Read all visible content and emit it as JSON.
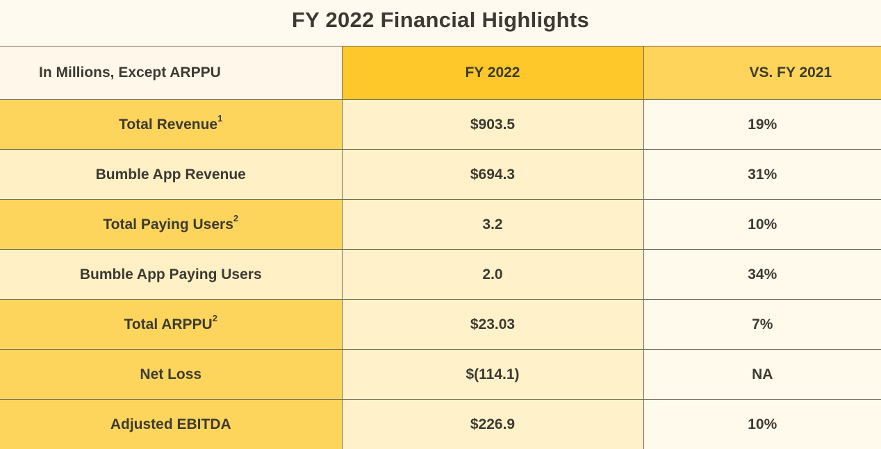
{
  "title": "FY 2022 Financial Highlights",
  "table": {
    "headers": [
      "In Millions, Except ARPPU",
      "FY 2022",
      "VS. FY 2021"
    ],
    "rows": [
      {
        "label": "Total Revenue",
        "sup": "1",
        "fy2022": "$903.5",
        "vs2021": "19%"
      },
      {
        "label": "Bumble App Revenue",
        "sup": "",
        "fy2022": "$694.3",
        "vs2021": "31%"
      },
      {
        "label": "Total Paying Users",
        "sup": "2",
        "fy2022": "3.2",
        "vs2021": "10%"
      },
      {
        "label": "Bumble App Paying Users",
        "sup": "",
        "fy2022": "2.0",
        "vs2021": "34%"
      },
      {
        "label": "Total ARPPU",
        "sup": "2",
        "fy2022": "$23.03",
        "vs2021": "7%"
      },
      {
        "label": "Net Loss",
        "sup": "",
        "fy2022": "$(114.1)",
        "vs2021": "NA"
      },
      {
        "label": "Adjusted EBITDA",
        "sup": "",
        "fy2022": "$226.9",
        "vs2021": "10%"
      }
    ]
  },
  "colors": {
    "header_fy": "#fec82a",
    "header_vs": "#fed45a",
    "label_dark": "#fed55c",
    "label_light": "#fff0c6",
    "text": "#3d3a32"
  }
}
